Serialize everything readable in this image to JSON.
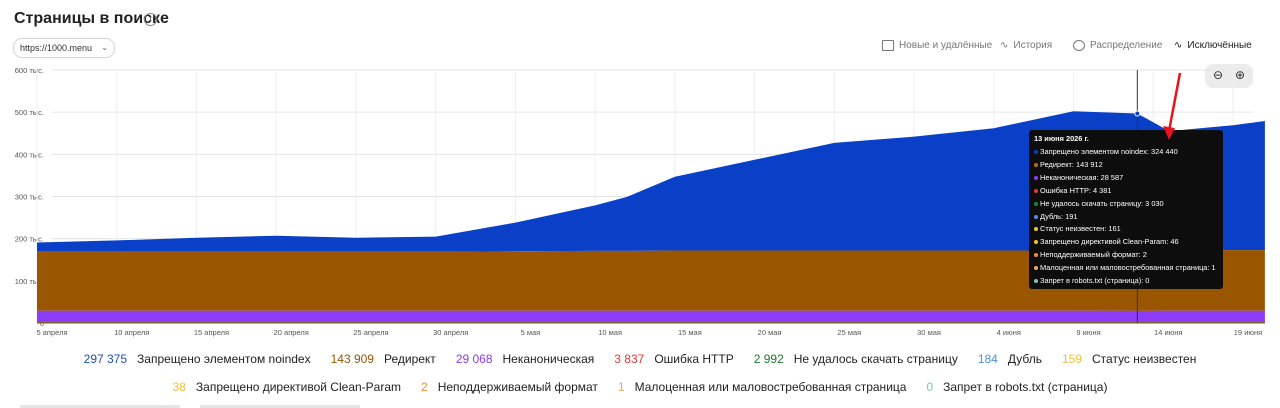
{
  "header": {
    "title": "Страницы в поиске",
    "info_icon": "info-icon",
    "host_select": "https://1000.menu",
    "nav": [
      {
        "label": "Новые и удалённые",
        "icon": "table-icon",
        "active": false
      },
      {
        "label": "История",
        "icon": "line-chart-icon",
        "active": false
      },
      {
        "label": "Распределение",
        "icon": "pie-chart-icon",
        "active": false
      },
      {
        "label": "Исключённые",
        "icon": "area-chart-icon",
        "active": true
      }
    ],
    "zoom_out_icon": "zoom-out-icon",
    "zoom_in_icon": "zoom-in-icon"
  },
  "chart_data": {
    "type": "area",
    "stacked": true,
    "ylim": [
      0,
      600000
    ],
    "y_ticks": [
      "600 тыс.",
      "500 тыс.",
      "400 тыс.",
      "300 тыс.",
      "200 тыс.",
      "100 тыс.",
      "0"
    ],
    "x_ticks": [
      "5 апреля",
      "10 апреля",
      "15 апреля",
      "20 апреля",
      "25 апреля",
      "30 апреля",
      "5 мая",
      "10 мая",
      "15 мая",
      "20 мая",
      "25 мая",
      "30 мая",
      "4 июня",
      "9 июня",
      "14 июня",
      "19 июня"
    ],
    "grid": true,
    "x": [
      "5 апреля",
      "10 апреля",
      "15 апреля",
      "20 апреля",
      "25 апреля",
      "30 апреля",
      "5 мая",
      "10 мая",
      "12 мая",
      "15 мая",
      "20 мая",
      "25 мая",
      "30 мая",
      "4 июня",
      "9 июня",
      "13 июня",
      "15 июня",
      "19 июня",
      "21 июня"
    ],
    "series": [
      {
        "name": "Неканоническая",
        "color": "#8b3cf4",
        "values": [
          29000,
          29000,
          29000,
          29000,
          29000,
          29000,
          29000,
          29000,
          29000,
          29000,
          29000,
          29000,
          29000,
          29000,
          29000,
          28587,
          29000,
          29000,
          29000
        ]
      },
      {
        "name": "Редирект",
        "color": "#9a5500",
        "values": [
          140000,
          140000,
          140000,
          140000,
          140000,
          140000,
          141000,
          142000,
          142000,
          143000,
          143000,
          143000,
          143000,
          143000,
          143000,
          143912,
          144000,
          144000,
          144000
        ]
      },
      {
        "name": "Запрещено элементом noindex",
        "color": "#0a3fc8",
        "values": [
          22000,
          27000,
          33000,
          38000,
          33000,
          36000,
          68000,
          108000,
          128000,
          175000,
          215000,
          255000,
          270000,
          290000,
          330000,
          324440,
          282000,
          296000,
          306000
        ]
      }
    ],
    "hover": {
      "date": "13 июня 2026 г.",
      "rows": [
        {
          "label": "Запрещено элементом noindex: 324 440",
          "color": "#0a3fc8"
        },
        {
          "label": "Редирект: 143 912",
          "color": "#c26a00"
        },
        {
          "label": "Неканоническая: 28 587",
          "color": "#8b3cf4"
        },
        {
          "label": "Ошибка HTTP: 4 381",
          "color": "#e53935"
        },
        {
          "label": "Не удалось скачать страницу: 3 030",
          "color": "#1b8a2a"
        },
        {
          "label": "Дубль: 191",
          "color": "#4a90e2"
        },
        {
          "label": "Статус неизвестен: 161",
          "color": "#f2c037"
        },
        {
          "label": "Запрещено директивой Clean-Param: 46",
          "color": "#f2c037"
        },
        {
          "label": "Неподдерживаемый формат: 2",
          "color": "#f28c28"
        },
        {
          "label": "Малоценная или маловостребованная страница: 1",
          "color": "#f2a65a"
        },
        {
          "label": "Запрет в robots.txt (страница): 0",
          "color": "#7bc7a0"
        }
      ]
    }
  },
  "legend": {
    "row1": [
      {
        "value": "297 375",
        "name": "Запрещено элементом noindex",
        "color": "#1f4fb8"
      },
      {
        "value": "143 909",
        "name": "Редирект",
        "color": "#9a5500"
      },
      {
        "value": "29 068",
        "name": "Неканоническая",
        "color": "#8b3cf4"
      },
      {
        "value": "3 837",
        "name": "Ошибка HTTP",
        "color": "#e53935"
      },
      {
        "value": "2 992",
        "name": "Не удалось скачать страницу",
        "color": "#1b7a2a"
      },
      {
        "value": "184",
        "name": "Дубль",
        "color": "#4a90e2"
      },
      {
        "value": "159",
        "name": "Статус неизвестен",
        "color": "#f2c037"
      }
    ],
    "row2": [
      {
        "value": "38",
        "name": "Запрещено директивой Clean-Param",
        "color": "#f2c037"
      },
      {
        "value": "2",
        "name": "Неподдерживаемый формат",
        "color": "#f28c28"
      },
      {
        "value": "1",
        "name": "Малоценная или маловостребованная страница",
        "color": "#f2a65a"
      },
      {
        "value": "0",
        "name": "Запрет в robots.txt (страница)",
        "color": "#7bc7a0"
      }
    ]
  }
}
